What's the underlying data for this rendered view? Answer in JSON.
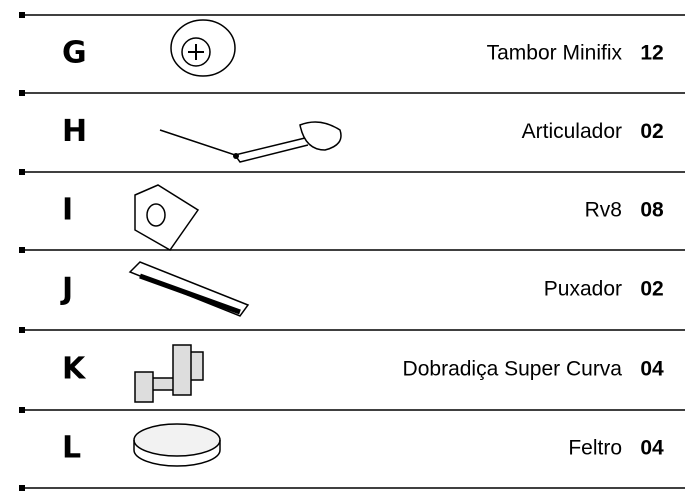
{
  "rows": [
    {
      "letter": "G",
      "name": "Tambor Minifix",
      "qty": "12"
    },
    {
      "letter": "H",
      "name": "Articulador",
      "qty": "02"
    },
    {
      "letter": "I",
      "name": "Rv8",
      "qty": "08"
    },
    {
      "letter": "J",
      "name": "Puxador",
      "qty": "02"
    },
    {
      "letter": "K",
      "name": "Dobradiça Super Curva",
      "qty": "04"
    },
    {
      "letter": "L",
      "name": "Feltro",
      "qty": "04"
    }
  ]
}
